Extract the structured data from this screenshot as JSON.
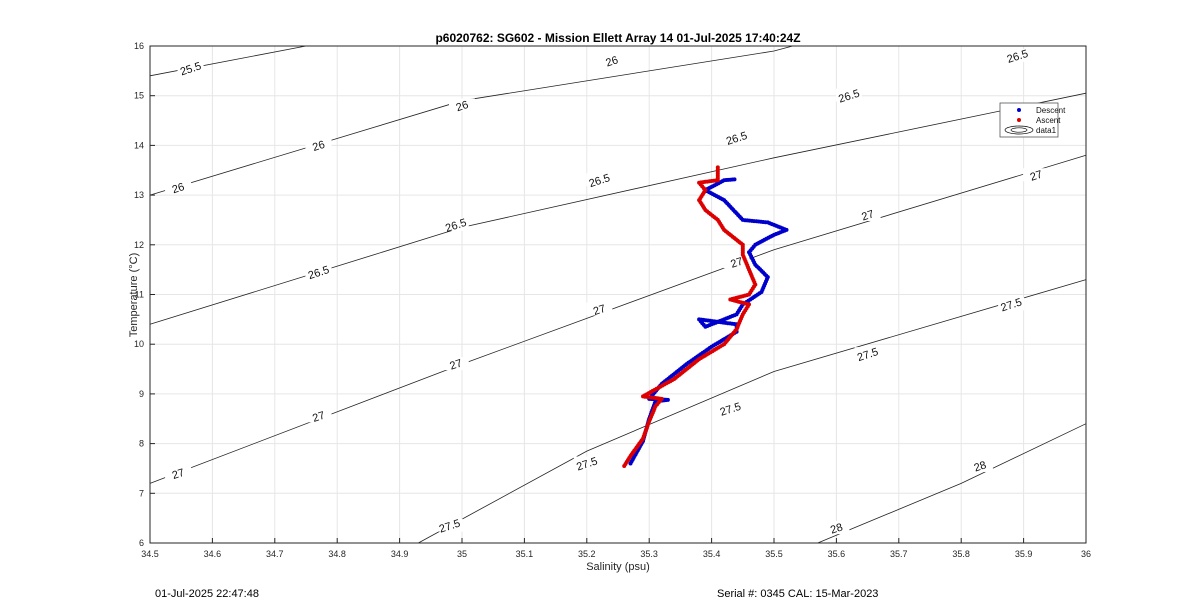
{
  "chart_data": {
    "type": "scatter",
    "title": "p6020762: SG602 - Mission Ellett Array 14 01-Jul-2025 17:40:24Z",
    "xlabel": "Salinity (psu)",
    "ylabel": "Temperature (°C)",
    "xlim": [
      34.5,
      36
    ],
    "ylim": [
      6,
      16
    ],
    "xticks": [
      "34.5",
      "34.6",
      "34.7",
      "34.8",
      "34.9",
      "35",
      "35.1",
      "35.2",
      "35.3",
      "35.4",
      "35.5",
      "35.6",
      "35.7",
      "35.8",
      "35.9",
      "36"
    ],
    "yticks": [
      "6",
      "7",
      "8",
      "9",
      "10",
      "11",
      "12",
      "13",
      "14",
      "15",
      "16"
    ],
    "grid": true,
    "legend_position": "top-right",
    "legend": [
      {
        "label": "Descent",
        "color": "#0000cc"
      },
      {
        "label": "Ascent",
        "color": "#dd0000"
      },
      {
        "label": "data1",
        "color": "#000000"
      }
    ],
    "contours": [
      {
        "label": "25.5",
        "points": [
          [
            34.5,
            15.4
          ],
          [
            34.75,
            16.0
          ]
        ]
      },
      {
        "label": "26",
        "points": [
          [
            34.5,
            13.0
          ],
          [
            35.0,
            14.9
          ],
          [
            35.5,
            15.9
          ],
          [
            35.53,
            16.0
          ]
        ]
      },
      {
        "label": "26.5",
        "points": [
          [
            34.5,
            10.4
          ],
          [
            35.0,
            12.35
          ],
          [
            35.5,
            13.75
          ],
          [
            36.0,
            15.05
          ]
        ]
      },
      {
        "label": "27",
        "points": [
          [
            34.5,
            7.2
          ],
          [
            35.0,
            9.6
          ],
          [
            35.5,
            11.9
          ],
          [
            36.0,
            13.8
          ]
        ]
      },
      {
        "label": "27.5",
        "points": [
          [
            34.93,
            6.0
          ],
          [
            35.2,
            7.85
          ],
          [
            35.5,
            9.45
          ],
          [
            36.0,
            11.3
          ]
        ]
      },
      {
        "label": "28",
        "points": [
          [
            35.57,
            6.0
          ],
          [
            35.8,
            7.2
          ],
          [
            36.0,
            8.4
          ]
        ]
      }
    ],
    "contour_labels": [
      {
        "text": "25.5",
        "x": 34.565,
        "y": 15.55
      },
      {
        "text": "26",
        "x": 35.0,
        "y": 14.8
      },
      {
        "text": "26",
        "x": 34.77,
        "y": 14.0
      },
      {
        "text": "26",
        "x": 34.545,
        "y": 13.15
      },
      {
        "text": "26",
        "x": 35.24,
        "y": 15.7
      },
      {
        "text": "26.5",
        "x": 35.89,
        "y": 15.8
      },
      {
        "text": "26.5",
        "x": 35.62,
        "y": 15.0
      },
      {
        "text": "26.5",
        "x": 35.44,
        "y": 14.15
      },
      {
        "text": "26.5",
        "x": 35.22,
        "y": 13.3
      },
      {
        "text": "26.5",
        "x": 34.99,
        "y": 12.4
      },
      {
        "text": "26.5",
        "x": 34.77,
        "y": 11.45
      },
      {
        "text": "27",
        "x": 35.92,
        "y": 13.4
      },
      {
        "text": "27",
        "x": 35.65,
        "y": 12.6
      },
      {
        "text": "27",
        "x": 35.44,
        "y": 11.65
      },
      {
        "text": "27",
        "x": 35.22,
        "y": 10.7
      },
      {
        "text": "27",
        "x": 34.99,
        "y": 9.6
      },
      {
        "text": "27",
        "x": 34.77,
        "y": 8.55
      },
      {
        "text": "27",
        "x": 34.545,
        "y": 7.4
      },
      {
        "text": "27.5",
        "x": 35.88,
        "y": 10.8
      },
      {
        "text": "27.5",
        "x": 35.65,
        "y": 9.8
      },
      {
        "text": "27.5",
        "x": 35.43,
        "y": 8.7
      },
      {
        "text": "27.5",
        "x": 35.2,
        "y": 7.6
      },
      {
        "text": "27.5",
        "x": 34.98,
        "y": 6.35
      },
      {
        "text": "28",
        "x": 35.83,
        "y": 7.55
      },
      {
        "text": "28",
        "x": 35.6,
        "y": 6.3
      }
    ],
    "series": [
      {
        "name": "Descent",
        "color": "#0000cc",
        "path": [
          [
            35.27,
            7.6
          ],
          [
            35.29,
            8.05
          ],
          [
            35.3,
            8.5
          ],
          [
            35.31,
            8.85
          ],
          [
            35.33,
            8.88
          ],
          [
            35.3,
            8.9
          ],
          [
            35.32,
            9.2
          ],
          [
            35.36,
            9.6
          ],
          [
            35.4,
            9.95
          ],
          [
            35.44,
            10.25
          ],
          [
            35.44,
            10.4
          ],
          [
            35.38,
            10.5
          ],
          [
            35.39,
            10.35
          ],
          [
            35.44,
            10.6
          ],
          [
            35.45,
            10.8
          ],
          [
            35.48,
            11.05
          ],
          [
            35.49,
            11.35
          ],
          [
            35.47,
            11.6
          ],
          [
            35.46,
            11.85
          ],
          [
            35.47,
            12.0
          ],
          [
            35.5,
            12.2
          ],
          [
            35.52,
            12.3
          ],
          [
            35.49,
            12.45
          ],
          [
            35.45,
            12.5
          ],
          [
            35.42,
            12.9
          ],
          [
            35.39,
            13.1
          ],
          [
            35.42,
            13.3
          ],
          [
            35.44,
            13.32
          ]
        ]
      },
      {
        "name": "Ascent",
        "color": "#dd0000",
        "path": [
          [
            35.26,
            7.55
          ],
          [
            35.27,
            7.75
          ],
          [
            35.29,
            8.1
          ],
          [
            35.3,
            8.45
          ],
          [
            35.31,
            8.75
          ],
          [
            35.32,
            8.9
          ],
          [
            35.29,
            8.95
          ],
          [
            35.34,
            9.3
          ],
          [
            35.38,
            9.7
          ],
          [
            35.42,
            10.0
          ],
          [
            35.44,
            10.3
          ],
          [
            35.45,
            10.6
          ],
          [
            35.46,
            10.8
          ],
          [
            35.43,
            10.9
          ],
          [
            35.46,
            11.0
          ],
          [
            35.47,
            11.2
          ],
          [
            35.46,
            11.5
          ],
          [
            35.45,
            11.8
          ],
          [
            35.45,
            12.0
          ],
          [
            35.42,
            12.3
          ],
          [
            35.41,
            12.5
          ],
          [
            35.39,
            12.7
          ],
          [
            35.38,
            12.9
          ],
          [
            35.39,
            13.1
          ],
          [
            35.38,
            13.25
          ],
          [
            35.41,
            13.3
          ],
          [
            35.41,
            13.6
          ]
        ]
      }
    ]
  },
  "footer": {
    "timestamp": "01-Jul-2025 22:47:48",
    "serial": "Serial #: 0345  CAL: 15-Mar-2023"
  }
}
